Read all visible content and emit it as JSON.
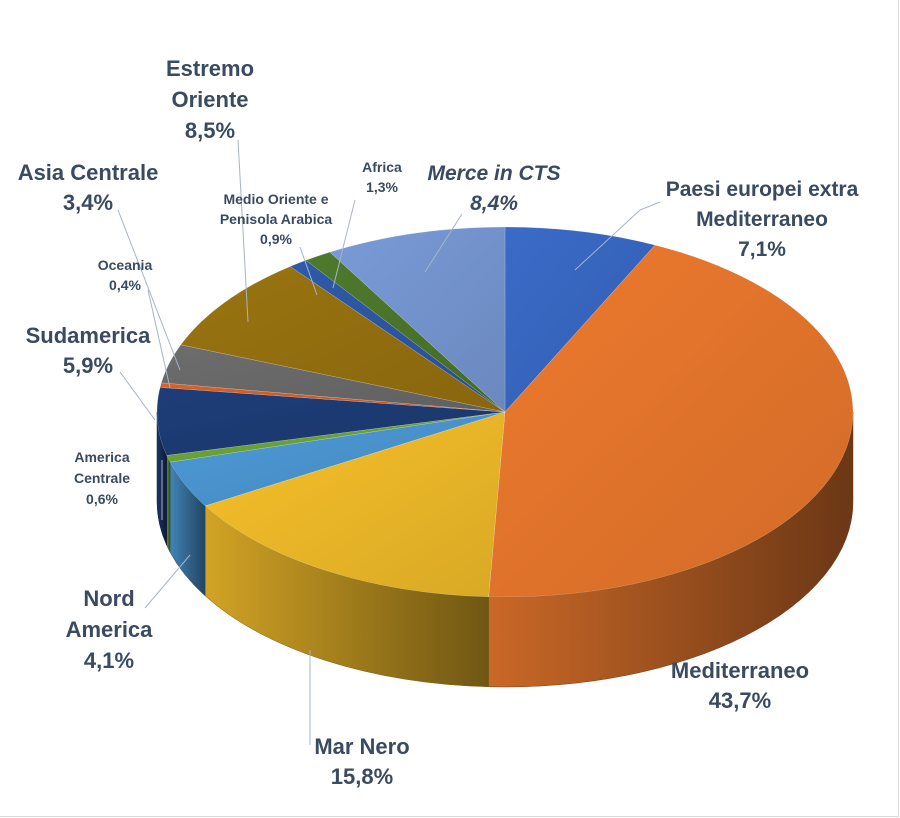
{
  "chart_data": {
    "type": "pie",
    "title": "",
    "slices": [
      {
        "label": "Paesi europei extra Mediterraneo",
        "value": 7.1,
        "value_label": "7,1%",
        "color": "#3a6bc8",
        "label_color": "#3a4a60"
      },
      {
        "label": "Mediterraneo",
        "value": 43.7,
        "value_label": "43,7%",
        "color": "#ee7a2e",
        "label_color": "#3a4a60"
      },
      {
        "label": "Mar Nero",
        "value": 15.8,
        "value_label": "15,8%",
        "color": "#f7c02a",
        "label_color": "#3a4a60"
      },
      {
        "label": "Nord America",
        "value": 4.1,
        "value_label": "4,1%",
        "color": "#4d9ad8",
        "label_color": "#3a4a60"
      },
      {
        "label": "America Centrale",
        "value": 0.6,
        "value_label": "0,6%",
        "color": "#6faa3a",
        "label_color": "#3a4a60"
      },
      {
        "label": "Sudamerica",
        "value": 5.9,
        "value_label": "5,9%",
        "color": "#1e3d78",
        "label_color": "#3a4a60"
      },
      {
        "label": "Oceania",
        "value": 0.4,
        "value_label": "0,4%",
        "color": "#d9612a",
        "label_color": "#3a4a60"
      },
      {
        "label": "Asia Centrale",
        "value": 3.4,
        "value_label": "3,4%",
        "color": "#6d6d6d",
        "label_color": "#3a4a60"
      },
      {
        "label": "Estremo Oriente",
        "value": 8.5,
        "value_label": "8,5%",
        "color": "#9a7410",
        "label_color": "#3a4a60"
      },
      {
        "label": "Medio Oriente e Penisola Arabica",
        "value": 0.9,
        "value_label": "0,9%",
        "color": "#2f5aa8",
        "label_color": "#3a4a60"
      },
      {
        "label": "Africa",
        "value": 1.3,
        "value_label": "1,3%",
        "color": "#4e7a2c",
        "label_color": "#3a4a60"
      },
      {
        "label": "Merce in CTS",
        "value": 8.4,
        "value_label": "8,4%",
        "color": "#7a9bd8",
        "label_color": "#c55a11"
      }
    ]
  }
}
